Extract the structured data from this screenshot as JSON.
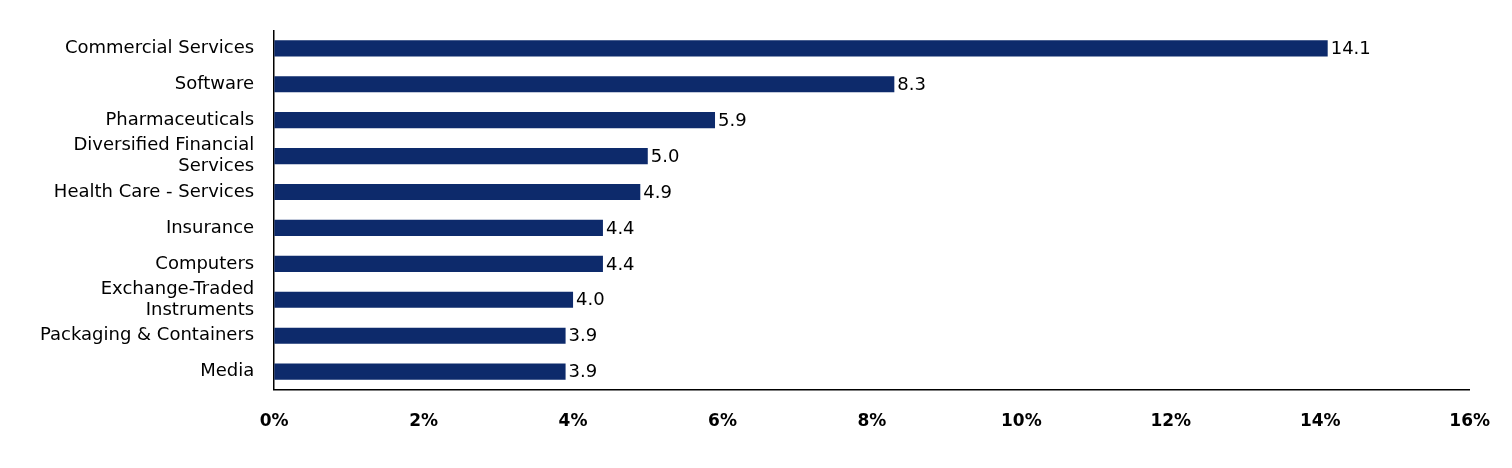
{
  "chart_data": {
    "type": "bar",
    "orientation": "horizontal",
    "categories": [
      "Commercial Services",
      "Software",
      "Pharmaceuticals",
      "Diversified Financial Services",
      "Health Care - Services",
      "Insurance",
      "Computers",
      "Exchange-Traded Instruments",
      "Packaging & Containers",
      "Media"
    ],
    "values": [
      14.1,
      8.3,
      5.9,
      5.0,
      4.9,
      4.4,
      4.4,
      4.0,
      3.9,
      3.9
    ],
    "value_labels": [
      "14.1",
      "8.3",
      "5.9",
      "5.0",
      "4.9",
      "4.4",
      "4.4",
      "4.0",
      "3.9",
      "3.9"
    ],
    "data_labels": true,
    "color": "#0d2a6b",
    "xlim": [
      0,
      16
    ],
    "xticks": [
      {
        "value": 0,
        "label": "0%"
      },
      {
        "value": 2,
        "label": "2%"
      },
      {
        "value": 4,
        "label": "4%"
      },
      {
        "value": 6,
        "label": "6%"
      },
      {
        "value": 8,
        "label": "8%"
      },
      {
        "value": 10,
        "label": "10%"
      },
      {
        "value": 12,
        "label": "12%"
      },
      {
        "value": 14,
        "label": "14%"
      },
      {
        "value": 16,
        "label": "16%"
      }
    ],
    "grid": false
  }
}
